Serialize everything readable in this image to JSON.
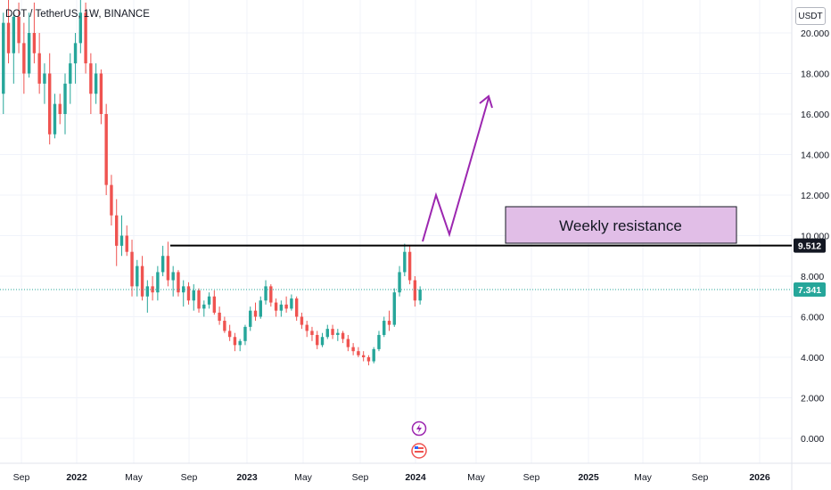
{
  "header": {
    "symbol_title": "DOT / TetherUS, 1W, BINANCE",
    "currency_badge": "USDT"
  },
  "colors": {
    "up": "#26a69a",
    "down": "#ef5350",
    "resistance_line": "#000000",
    "annotation_fill": "#e1bee7",
    "annotation_border": "#131722",
    "projection": "#9c27b0",
    "current_price_tag": "#26a69a",
    "resistance_tag": "#131722",
    "grid": "#f0f3fa"
  },
  "chart_data": {
    "type": "candlestick",
    "title": "DOT / TetherUS, 1W, BINANCE",
    "x_axis": {
      "tick_labels": [
        "Sep",
        "2022",
        "May",
        "Sep",
        "2023",
        "May",
        "Sep",
        "2024",
        "May",
        "Sep",
        "2025",
        "May",
        "Sep",
        "2026"
      ],
      "range": [
        "2021-08",
        "2026-04"
      ]
    },
    "y_axis": {
      "tick_labels": [
        "0.000",
        "2.000",
        "4.000",
        "6.000",
        "8.000",
        "10.000",
        "12.000",
        "14.000",
        "16.000",
        "18.000",
        "20.000"
      ],
      "range": [
        -1.2,
        21
      ]
    },
    "grid": true,
    "series": [
      {
        "values_ohlc_weekly_approx": [
          [
            13.0,
            17.5,
            12.5,
            17.0
          ],
          [
            17.0,
            21.0,
            16.0,
            20.5
          ],
          [
            20.5,
            22.0,
            18.5,
            19.0
          ],
          [
            19.0,
            21.0,
            17.5,
            20.8
          ],
          [
            20.8,
            21.5,
            19.0,
            19.5
          ],
          [
            19.5,
            20.5,
            17.0,
            18.0
          ],
          [
            18.0,
            21.0,
            17.8,
            20.0
          ],
          [
            20.0,
            21.5,
            18.5,
            19.0
          ],
          [
            19.0,
            20.0,
            17.0,
            17.5
          ],
          [
            17.5,
            18.5,
            16.5,
            18.0
          ],
          [
            18.0,
            19.0,
            14.5,
            15.0
          ],
          [
            15.0,
            17.0,
            14.8,
            16.5
          ],
          [
            16.5,
            17.0,
            15.5,
            16.0
          ],
          [
            16.0,
            18.0,
            15.0,
            17.5
          ],
          [
            17.5,
            19.0,
            16.5,
            18.5
          ],
          [
            18.5,
            20.0,
            17.5,
            19.5
          ],
          [
            19.5,
            22.0,
            19.0,
            21.0
          ],
          [
            21.0,
            21.5,
            18.0,
            18.5
          ],
          [
            18.5,
            19.0,
            16.0,
            17.0
          ],
          [
            17.0,
            18.5,
            16.5,
            18.0
          ],
          [
            18.0,
            18.2,
            15.5,
            16.0
          ],
          [
            16.0,
            16.5,
            12.0,
            12.5
          ],
          [
            12.5,
            13.0,
            10.5,
            11.0
          ],
          [
            11.0,
            11.8,
            8.5,
            9.5
          ],
          [
            9.5,
            11.0,
            9.0,
            10.0
          ],
          [
            10.0,
            10.5,
            9.0,
            9.2
          ],
          [
            9.2,
            9.8,
            7.0,
            7.5
          ],
          [
            7.5,
            8.8,
            7.0,
            8.5
          ],
          [
            8.5,
            9.0,
            6.8,
            7.0
          ],
          [
            7.0,
            7.8,
            6.2,
            7.5
          ],
          [
            7.5,
            8.0,
            6.8,
            7.2
          ],
          [
            7.2,
            8.5,
            6.8,
            8.2
          ],
          [
            8.2,
            9.5,
            8.0,
            9.0
          ],
          [
            9.0,
            9.7,
            7.5,
            7.8
          ],
          [
            7.8,
            8.5,
            7.0,
            8.2
          ],
          [
            8.2,
            8.3,
            7.0,
            7.2
          ],
          [
            7.2,
            7.8,
            6.5,
            7.5
          ],
          [
            7.5,
            7.7,
            6.6,
            6.8
          ],
          [
            6.8,
            7.6,
            6.3,
            7.3
          ],
          [
            7.3,
            7.4,
            6.2,
            6.4
          ],
          [
            6.4,
            6.8,
            6.0,
            6.6
          ],
          [
            6.6,
            7.2,
            6.4,
            7.0
          ],
          [
            7.0,
            7.3,
            6.1,
            6.2
          ],
          [
            6.2,
            6.5,
            5.6,
            5.8
          ],
          [
            5.8,
            6.0,
            5.2,
            5.3
          ],
          [
            5.3,
            5.6,
            4.8,
            5.0
          ],
          [
            5.0,
            5.2,
            4.3,
            4.6
          ],
          [
            4.6,
            4.9,
            4.3,
            4.8
          ],
          [
            4.8,
            5.6,
            4.6,
            5.5
          ],
          [
            5.5,
            6.5,
            5.3,
            6.3
          ],
          [
            6.3,
            6.7,
            5.8,
            6.0
          ],
          [
            6.0,
            7.0,
            5.9,
            6.8
          ],
          [
            6.8,
            7.8,
            6.6,
            7.5
          ],
          [
            7.5,
            7.6,
            6.5,
            6.7
          ],
          [
            6.7,
            6.9,
            6.0,
            6.3
          ],
          [
            6.3,
            6.8,
            6.0,
            6.6
          ],
          [
            6.6,
            7.0,
            6.2,
            6.4
          ],
          [
            6.4,
            7.1,
            6.3,
            6.9
          ],
          [
            6.9,
            7.0,
            5.8,
            6.0
          ],
          [
            6.0,
            6.2,
            5.4,
            5.6
          ],
          [
            5.6,
            5.8,
            5.0,
            5.3
          ],
          [
            5.3,
            5.5,
            4.8,
            5.1
          ],
          [
            5.1,
            5.3,
            4.4,
            4.6
          ],
          [
            4.6,
            5.2,
            4.5,
            5.0
          ],
          [
            5.0,
            5.6,
            4.9,
            5.4
          ],
          [
            5.4,
            5.6,
            4.9,
            5.1
          ],
          [
            5.1,
            5.4,
            4.8,
            5.2
          ],
          [
            5.2,
            5.3,
            4.7,
            4.9
          ],
          [
            4.9,
            5.1,
            4.3,
            4.5
          ],
          [
            4.5,
            4.7,
            4.1,
            4.3
          ],
          [
            4.3,
            4.5,
            4.0,
            4.1
          ],
          [
            4.1,
            4.3,
            3.8,
            4.0
          ],
          [
            4.0,
            4.1,
            3.6,
            3.8
          ],
          [
            3.8,
            4.5,
            3.7,
            4.4
          ],
          [
            4.4,
            5.3,
            4.3,
            5.1
          ],
          [
            5.1,
            6.0,
            5.0,
            5.8
          ],
          [
            5.8,
            6.3,
            5.3,
            5.6
          ],
          [
            5.6,
            7.4,
            5.5,
            7.2
          ],
          [
            7.2,
            8.5,
            7.0,
            8.2
          ],
          [
            8.2,
            9.6,
            8.0,
            9.2
          ],
          [
            9.2,
            9.5,
            7.6,
            7.8
          ],
          [
            7.8,
            8.0,
            6.5,
            6.8
          ],
          [
            6.8,
            7.5,
            6.6,
            7.34
          ]
        ],
        "note": "approximate weekly candles read from the chart"
      }
    ],
    "annotations": {
      "resistance_level": 9.512,
      "resistance_label": "9.512",
      "current_price": 7.341,
      "current_price_label": "7.341",
      "box_text": "Weekly resistance"
    }
  }
}
